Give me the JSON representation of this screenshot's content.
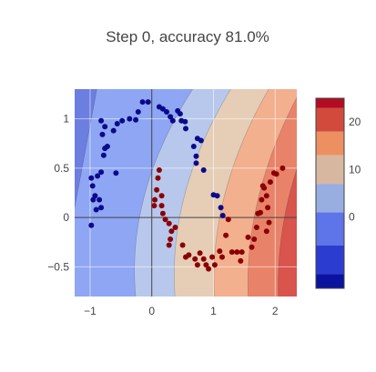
{
  "chart_data": {
    "type": "scatter",
    "title": "Step 0, accuracy 81.0%",
    "xlim": [
      -1.25,
      2.35
    ],
    "ylim": [
      -0.8,
      1.3
    ],
    "x_ticks": [
      -1,
      0,
      1,
      2
    ],
    "y_ticks": [
      -0.5,
      0,
      0.5,
      1
    ],
    "x_tick_labels": [
      "−1",
      "0",
      "1",
      "2"
    ],
    "y_tick_labels": [
      "−0.5",
      "0",
      "0.5",
      "1"
    ],
    "grid": true,
    "zero_lines": true,
    "decision_contour": {
      "type": "filled_contour",
      "colorscale": "RdBu_r",
      "slope": 0.3,
      "value_levels": [
        {
          "from": -15,
          "to": -10,
          "color": "#6c7ee0"
        },
        {
          "from": -10,
          "to": -5,
          "color": "#8ea6f3"
        },
        {
          "from": -5,
          "to": 0,
          "color": "#b8c8ec"
        },
        {
          "from": 0,
          "to": 5,
          "color": "#e6cdb6"
        },
        {
          "from": 5,
          "to": 10,
          "color": "#f3b08e"
        },
        {
          "from": 10,
          "to": 15,
          "color": "#e88369"
        },
        {
          "from": 15,
          "to": 20,
          "color": "#d8544c"
        }
      ],
      "boundaries_x_at_y0": [
        -1.28,
        -0.2,
        0.45,
        1.1,
        1.66,
        2.15
      ],
      "curvature": [
        0,
        0.28,
        0.26,
        0.24,
        0.22,
        0.22
      ]
    },
    "colorbar": {
      "ticks": [
        0,
        10,
        20
      ],
      "tick_labels": [
        "0",
        "10",
        "20"
      ],
      "range": [
        -15,
        25
      ],
      "bands": [
        {
          "from": -15,
          "to": -12,
          "color": "#0b12a0"
        },
        {
          "from": -12,
          "to": -6,
          "color": "#2b3dd0"
        },
        {
          "from": -6,
          "to": 1,
          "color": "#5d75e8"
        },
        {
          "from": 1,
          "to": 7,
          "color": "#99aee0"
        },
        {
          "from": 7,
          "to": 13,
          "color": "#d8b7a0"
        },
        {
          "from": 13,
          "to": 18,
          "color": "#ec9062"
        },
        {
          "from": 18,
          "to": 23,
          "color": "#d24a3c"
        },
        {
          "from": 23,
          "to": 25,
          "color": "#b20c24"
        }
      ]
    },
    "series": [
      {
        "color": "#0a0a8c",
        "points": [
          [
            -0.98,
            0.4
          ],
          [
            -0.96,
            0.32
          ],
          [
            -0.92,
            0.22
          ],
          [
            -0.95,
            0.18
          ],
          [
            -0.9,
            0.08
          ],
          [
            -0.98,
            -0.08
          ],
          [
            -0.88,
            0.42
          ],
          [
            -0.82,
            0.46
          ],
          [
            -0.78,
            0.63
          ],
          [
            -0.76,
            0.7
          ],
          [
            -0.72,
            0.72
          ],
          [
            -0.8,
            0.84
          ],
          [
            -0.76,
            0.92
          ],
          [
            -0.82,
            0.98
          ],
          [
            -0.62,
            0.88
          ],
          [
            -0.56,
            0.95
          ],
          [
            -0.48,
            0.98
          ],
          [
            -0.36,
            1.0
          ],
          [
            -0.26,
            0.99
          ],
          [
            -0.22,
            1.07
          ],
          [
            -0.15,
            1.17
          ],
          [
            -0.06,
            1.17
          ],
          [
            0.12,
            1.12
          ],
          [
            0.18,
            1.1
          ],
          [
            0.24,
            1.07
          ],
          [
            0.3,
            1.02
          ],
          [
            0.34,
            0.98
          ],
          [
            0.42,
            1.08
          ],
          [
            0.46,
            1.05
          ],
          [
            0.48,
            0.98
          ],
          [
            0.54,
            0.97
          ],
          [
            0.55,
            0.9
          ],
          [
            0.74,
            0.8
          ],
          [
            0.8,
            0.78
          ],
          [
            0.68,
            0.72
          ],
          [
            0.72,
            0.62
          ],
          [
            0.72,
            0.55
          ],
          [
            0.84,
            0.48
          ],
          [
            1.0,
            0.23
          ],
          [
            1.06,
            0.22
          ],
          [
            1.12,
            0.1
          ],
          [
            1.15,
            0.02
          ],
          [
            -0.58,
            0.45
          ],
          [
            -0.85,
            0.18
          ],
          [
            -0.82,
            0.1
          ]
        ]
      },
      {
        "color": "#8b0000",
        "points": [
          [
            0.12,
            0.48
          ],
          [
            0.1,
            0.4
          ],
          [
            0.08,
            0.28
          ],
          [
            0.05,
            0.18
          ],
          [
            0.04,
            0.12
          ],
          [
            0.16,
            0.22
          ],
          [
            0.16,
            0.12
          ],
          [
            0.18,
            0.04
          ],
          [
            0.22,
            -0.02
          ],
          [
            0.28,
            -0.06
          ],
          [
            0.32,
            -0.14
          ],
          [
            0.3,
            -0.22
          ],
          [
            0.28,
            -0.28
          ],
          [
            0.38,
            -0.1
          ],
          [
            0.5,
            -0.28
          ],
          [
            0.55,
            -0.4
          ],
          [
            0.6,
            -0.38
          ],
          [
            0.7,
            -0.42
          ],
          [
            0.74,
            -0.48
          ],
          [
            0.78,
            -0.36
          ],
          [
            0.84,
            -0.42
          ],
          [
            0.88,
            -0.48
          ],
          [
            0.92,
            -0.52
          ],
          [
            0.98,
            -0.4
          ],
          [
            1.02,
            -0.48
          ],
          [
            1.1,
            -0.34
          ],
          [
            1.14,
            -0.4
          ],
          [
            1.2,
            -0.18
          ],
          [
            1.24,
            -0.02
          ],
          [
            1.3,
            -0.35
          ],
          [
            1.38,
            -0.35
          ],
          [
            1.44,
            -0.44
          ],
          [
            1.46,
            -0.35
          ],
          [
            1.56,
            -0.2
          ],
          [
            1.62,
            -0.3
          ],
          [
            1.66,
            -0.22
          ],
          [
            1.7,
            -0.1
          ],
          [
            1.72,
            0.04
          ],
          [
            1.76,
            0.05
          ],
          [
            1.78,
            0.18
          ],
          [
            1.82,
            0.3
          ],
          [
            1.86,
            0.22
          ],
          [
            1.92,
            0.36
          ],
          [
            1.98,
            0.45
          ],
          [
            2.02,
            0.44
          ],
          [
            2.12,
            0.5
          ],
          [
            1.86,
            -0.14
          ],
          [
            1.88,
            0.1
          ],
          [
            1.8,
            0.32
          ],
          [
            1.9,
            -0.05
          ]
        ]
      }
    ]
  }
}
